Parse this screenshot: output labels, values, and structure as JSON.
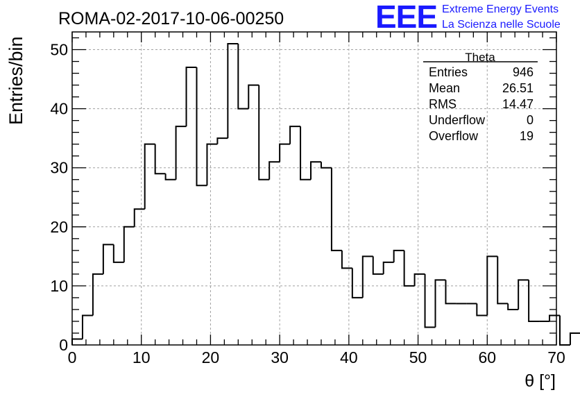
{
  "title": "ROMA-02-2017-10-06-00250",
  "logo": {
    "mark": "EEE",
    "line1": "Extreme Energy Events",
    "line2": "La Scienza nelle Scuole",
    "color": "#1a1aff"
  },
  "stats": {
    "name": "Theta",
    "rows": [
      {
        "label": "Entries",
        "value": "946"
      },
      {
        "label": "Mean",
        "value": "26.51"
      },
      {
        "label": "RMS",
        "value": "14.47"
      },
      {
        "label": "Underflow",
        "value": "0"
      },
      {
        "label": "Overflow",
        "value": "19"
      }
    ]
  },
  "chart_data": {
    "type": "bar",
    "histogram": true,
    "xlabel": "θ [°]",
    "ylabel": "Entries/bin",
    "xlim": [
      0,
      70
    ],
    "ylim": [
      0,
      53
    ],
    "bin_width": 1.5,
    "grid": true,
    "x_ticks": [
      0,
      10,
      20,
      30,
      40,
      50,
      60,
      70
    ],
    "y_ticks": [
      0,
      10,
      20,
      30,
      40,
      50
    ],
    "bin_edges_start": 0,
    "values": [
      1,
      5,
      12,
      17,
      14,
      20,
      23,
      34,
      29,
      28,
      37,
      47,
      27,
      34,
      35,
      51,
      40,
      44,
      28,
      31,
      34,
      37,
      28,
      31,
      30,
      16,
      13,
      8,
      15,
      12,
      14,
      16,
      10,
      12,
      3,
      11,
      7,
      7,
      7,
      5,
      15,
      7,
      6,
      11,
      4,
      4,
      5,
      0,
      2
    ],
    "line_color": "#000000"
  }
}
